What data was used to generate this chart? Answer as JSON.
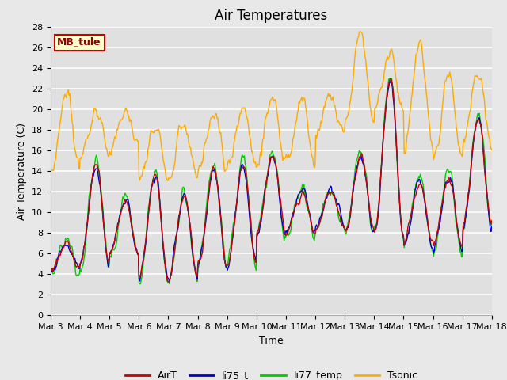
{
  "title": "Air Temperatures",
  "xlabel": "Time",
  "ylabel": "Air Temperature (C)",
  "ylim": [
    0,
    28
  ],
  "yticks": [
    0,
    2,
    4,
    6,
    8,
    10,
    12,
    14,
    16,
    18,
    20,
    22,
    24,
    26,
    28
  ],
  "xtick_labels": [
    "Mar 3",
    "Mar 4",
    "Mar 5",
    "Mar 6",
    "Mar 7",
    "Mar 8",
    "Mar 9",
    "Mar 10",
    "Mar 11",
    "Mar 12",
    "Mar 13",
    "Mar 14",
    "Mar 15",
    "Mar 16",
    "Mar 17",
    "Mar 18"
  ],
  "line_colors": {
    "AirT": "#cc0000",
    "li75_t": "#0000cc",
    "li77_temp": "#00cc00",
    "Tsonic": "#ffaa00"
  },
  "legend_label_box": "MB_tule",
  "legend_box_facecolor": "#ffffcc",
  "legend_box_edgecolor": "#cc0000",
  "fig_facecolor": "#e8e8e8",
  "ax_facecolor": "#e0e0e0",
  "grid_color": "#ffffff",
  "title_fontsize": 12,
  "axis_label_fontsize": 9,
  "tick_fontsize": 8,
  "n_points": 600
}
